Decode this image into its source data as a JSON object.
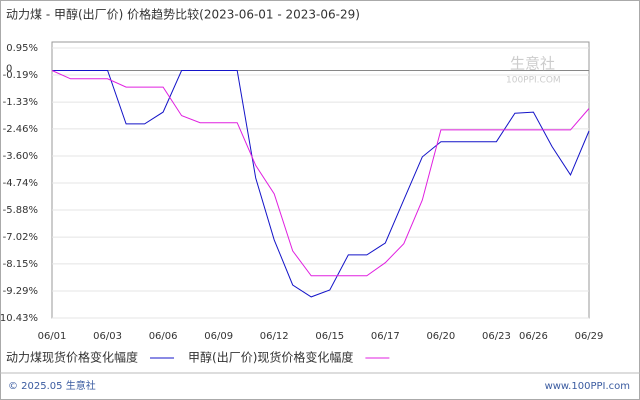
{
  "chart_data": {
    "type": "line",
    "title": "动力煤 - 甲醇(出厂价) 价格趋势比较(2023-06-01 - 2023-06-29)",
    "categories": [
      "06/01",
      null,
      null,
      "06/03",
      null,
      null,
      "06/06",
      null,
      null,
      "06/09",
      null,
      null,
      "06/12",
      null,
      null,
      "06/15",
      null,
      null,
      "06/17",
      null,
      null,
      "06/20",
      null,
      null,
      "06/23",
      null,
      "06/26",
      null,
      null,
      "06/29"
    ],
    "series": [
      {
        "name": "动力煤现货价格变化幅度",
        "color": "#1414c8",
        "values": [
          0,
          0,
          0,
          0,
          -2.25,
          -2.25,
          -1.75,
          0,
          0,
          0,
          0,
          -4.53,
          -7.14,
          -9.04,
          -9.54,
          -9.25,
          -7.77,
          -7.77,
          -7.27,
          -5.45,
          -3.64,
          -3.0,
          -3.0,
          -3.0,
          -3.0,
          -1.8,
          -1.75,
          -3.2,
          -4.4,
          -2.55
        ]
      },
      {
        "name": "甲醇(出厂价)现货价格变化幅度",
        "color": "#e020e0",
        "values": [
          0,
          -0.35,
          -0.35,
          -0.35,
          -0.7,
          -0.7,
          -0.7,
          -1.9,
          -2.2,
          -2.2,
          -2.2,
          -4.0,
          -5.2,
          -7.6,
          -8.65,
          -8.65,
          -8.65,
          -8.65,
          -8.1,
          -7.3,
          -5.46,
          -2.5,
          -2.5,
          -2.5,
          -2.5,
          -2.5,
          -2.5,
          -2.5,
          -2.5,
          -1.6
        ]
      }
    ],
    "ylim": [
      -10.43,
      0.95
    ],
    "yticks": [
      {
        "value": 0.95,
        "label": "0.95%"
      },
      {
        "value": -0.19,
        "label": "-0.19%"
      },
      {
        "value": -1.33,
        "label": "-1.33%"
      },
      {
        "value": -2.46,
        "label": "-2.46%"
      },
      {
        "value": -3.6,
        "label": "-3.60%"
      },
      {
        "value": -4.74,
        "label": "-4.74%"
      },
      {
        "value": -5.88,
        "label": "-5.88%"
      },
      {
        "value": -7.02,
        "label": "-7.02%"
      },
      {
        "value": -8.15,
        "label": "-8.15%"
      },
      {
        "value": -9.29,
        "label": "-9.29%"
      },
      {
        "value": -10.43,
        "label": "-10.43%"
      }
    ],
    "zero_tick": 0,
    "grid": true,
    "watermark": {
      "name": "生意社",
      "site": "100PPI.COM"
    },
    "footer": {
      "left": "© 2025.05 生意社",
      "right": "www.100PPI.com"
    }
  }
}
